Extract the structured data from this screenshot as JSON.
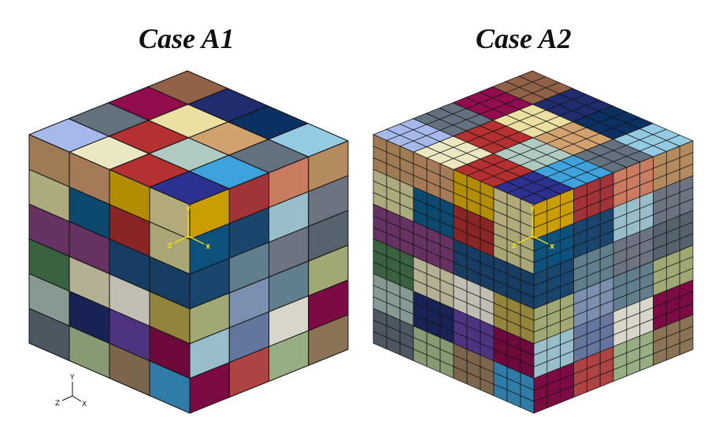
{
  "cases": [
    {
      "title": "Case A1",
      "subdivisions": 1,
      "triad": {
        "y": "Y",
        "z": "Z",
        "x": "X"
      },
      "palette": [
        "#c79a68",
        "#d8d49c",
        "#2a2e87",
        "#0a2f5e",
        "#b6a54a",
        "#ac2e2f",
        "#e0d49a",
        "#7f7364",
        "#8ec0d8",
        "#5f6d7a",
        "#a8c0b8",
        "#e0dcb8",
        "#8a0c4a",
        "#d6cf92",
        "#e0b000",
        "#cd9a6b",
        "#e9e4c4",
        "#9fb0e0",
        "#e08a6b",
        "#8b5d45",
        "#8b7b63",
        "#0e5b8a",
        "#b33a3f",
        "#1d4e7a",
        "#7f3f7a",
        "#a8c090",
        "#1f2a6a",
        "#3a7a6a",
        "#b6a24c",
        "#6f83b0",
        "#3b9bd2",
        "#a9d3e0",
        "#7a8090",
        "#b2bc80",
        "#c04a4a",
        "#8b9fc2",
        "#d6d09a",
        "#f0ede0",
        "#6040a0",
        "#4a7a50",
        "#9a8060",
        "#6b8c9a"
      ],
      "top_colors": [
        [
          2,
          30,
          9,
          8
        ],
        [
          5,
          10,
          0,
          3
        ],
        [
          11,
          5,
          6,
          26
        ],
        [
          17,
          9,
          12,
          19
        ]
      ],
      "left_colors": [
        [
          0,
          15,
          14,
          6
        ],
        [
          1,
          21,
          5,
          13
        ],
        [
          24,
          24,
          23,
          23
        ],
        [
          39,
          11,
          37,
          4
        ],
        [
          10,
          26,
          38,
          12
        ],
        [
          9,
          25,
          40,
          30
        ]
      ],
      "right_colors": [
        [
          14,
          22,
          18,
          0
        ],
        [
          21,
          23,
          31,
          32
        ],
        [
          23,
          41,
          32,
          9
        ],
        [
          33,
          35,
          41,
          33
        ],
        [
          31,
          29,
          37,
          12
        ],
        [
          12,
          34,
          25,
          40
        ]
      ]
    },
    {
      "title": "Case A2",
      "subdivisions": 3,
      "triad": {
        "y": "Y",
        "z": "Z",
        "x": "X"
      },
      "palette": [
        "#c79a68",
        "#d8d49c",
        "#2a2e87",
        "#0a2f5e",
        "#b6a54a",
        "#ac2e2f",
        "#e0d49a",
        "#7f7364",
        "#8ec0d8",
        "#5f6d7a",
        "#a8c0b8",
        "#e0dcb8",
        "#8a0c4a",
        "#d6cf92",
        "#e0b000",
        "#cd9a6b",
        "#e9e4c4",
        "#9fb0e0",
        "#e08a6b",
        "#8b5d45",
        "#8b7b63",
        "#0e5b8a",
        "#b33a3f",
        "#1d4e7a",
        "#7f3f7a",
        "#a8c090",
        "#1f2a6a",
        "#3a7a6a",
        "#b6a24c",
        "#6f83b0",
        "#3b9bd2",
        "#a9d3e0",
        "#7a8090",
        "#b2bc80",
        "#c04a4a",
        "#8b9fc2",
        "#d6d09a",
        "#f0ede0",
        "#6040a0",
        "#4a7a50",
        "#9a8060",
        "#6b8c9a"
      ],
      "top_colors": [
        [
          2,
          30,
          9,
          8
        ],
        [
          5,
          10,
          0,
          3
        ],
        [
          11,
          5,
          6,
          26
        ],
        [
          17,
          9,
          12,
          19
        ]
      ],
      "left_colors": [
        [
          0,
          15,
          14,
          6
        ],
        [
          1,
          21,
          5,
          13
        ],
        [
          24,
          24,
          23,
          23
        ],
        [
          39,
          11,
          37,
          4
        ],
        [
          10,
          26,
          38,
          12
        ],
        [
          9,
          25,
          40,
          30
        ]
      ],
      "right_colors": [
        [
          14,
          22,
          18,
          0
        ],
        [
          21,
          23,
          31,
          32
        ],
        [
          23,
          41,
          32,
          9
        ],
        [
          33,
          35,
          41,
          33
        ],
        [
          31,
          29,
          37,
          12
        ],
        [
          12,
          34,
          25,
          40
        ]
      ]
    }
  ],
  "global_triad": {
    "y": "Y",
    "z": "Z",
    "x": "X"
  }
}
